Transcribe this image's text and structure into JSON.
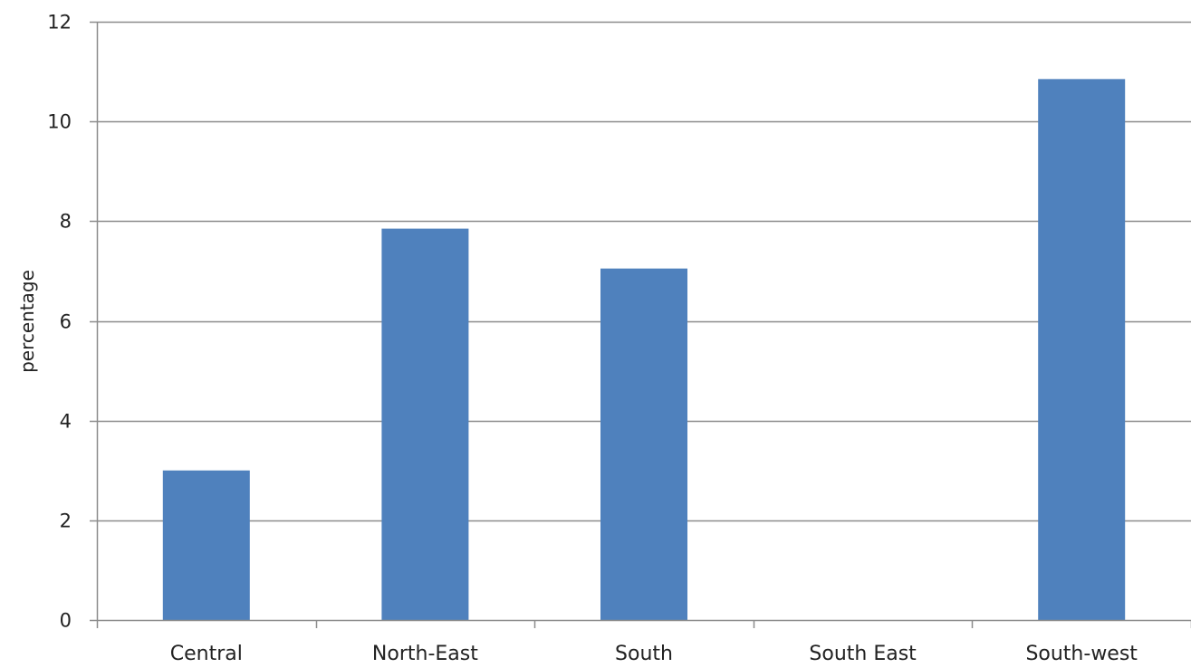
{
  "chart_data": {
    "type": "bar",
    "title": "",
    "xlabel": "",
    "ylabel": "percentage",
    "categories": [
      "Central",
      "North-East",
      "South",
      "South East",
      "South-west"
    ],
    "values": [
      3,
      7.85,
      7.05,
      0,
      10.85
    ],
    "ylim": [
      0,
      12
    ],
    "yticks": [
      0,
      2,
      4,
      6,
      8,
      10,
      12
    ],
    "ytick_labels": [
      "0",
      "2",
      "4",
      "6",
      "8",
      "10",
      "12"
    ],
    "grid": true,
    "legend": "none",
    "colors": {
      "bar": "#4f81bd",
      "grid": "#8c8c8c",
      "axis": "#8c8c8c"
    }
  }
}
